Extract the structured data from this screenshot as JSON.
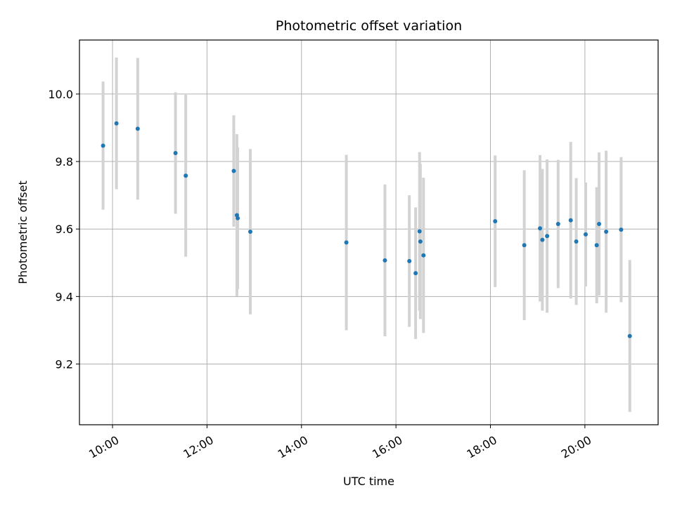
{
  "chart_data": {
    "type": "scatter",
    "title": "Photometric offset variation",
    "xlabel": "UTC time",
    "ylabel": "Photometric offset",
    "x_tick_labels": [
      "10:00",
      "12:00",
      "14:00",
      "16:00",
      "18:00",
      "20:00"
    ],
    "x_ticks_hours": [
      10,
      12,
      14,
      16,
      18,
      20
    ],
    "xlim_hours": [
      9.3,
      21.55
    ],
    "y_ticks": [
      9.2,
      9.4,
      9.6,
      9.8,
      10.0
    ],
    "ylim": [
      9.02,
      10.16
    ],
    "grid": true,
    "marker_color": "#1f77b4",
    "errorbar_color": "#d3d3d3",
    "series": [
      {
        "x": [
          "09:48",
          "10:05",
          "10:32",
          "11:20",
          "11:33",
          "12:34",
          "12:38",
          "12:39",
          "12:55",
          "14:57",
          "15:46",
          "16:17",
          "16:25",
          "16:30",
          "16:31",
          "16:35",
          "18:06",
          "18:43",
          "19:03",
          "19:06",
          "19:12",
          "19:26",
          "19:42",
          "19:49",
          "20:01",
          "20:15",
          "20:18",
          "20:27",
          "20:46",
          "20:57"
        ],
        "y": [
          9.847,
          9.913,
          9.897,
          9.825,
          9.758,
          9.772,
          9.641,
          9.632,
          9.592,
          9.56,
          9.507,
          9.505,
          9.469,
          9.593,
          9.563,
          9.522,
          9.623,
          9.552,
          9.602,
          9.568,
          9.579,
          9.615,
          9.626,
          9.563,
          9.584,
          9.552,
          9.615,
          9.592,
          9.598,
          9.283
        ],
        "yerr": [
          0.19,
          0.195,
          0.21,
          0.18,
          0.24,
          0.165,
          0.24,
          0.21,
          0.245,
          0.26,
          0.225,
          0.195,
          0.195,
          0.235,
          0.23,
          0.23,
          0.195,
          0.222,
          0.217,
          0.21,
          0.227,
          0.19,
          0.232,
          0.188,
          0.154,
          0.172,
          0.212,
          0.24,
          0.215,
          0.225
        ]
      }
    ]
  }
}
